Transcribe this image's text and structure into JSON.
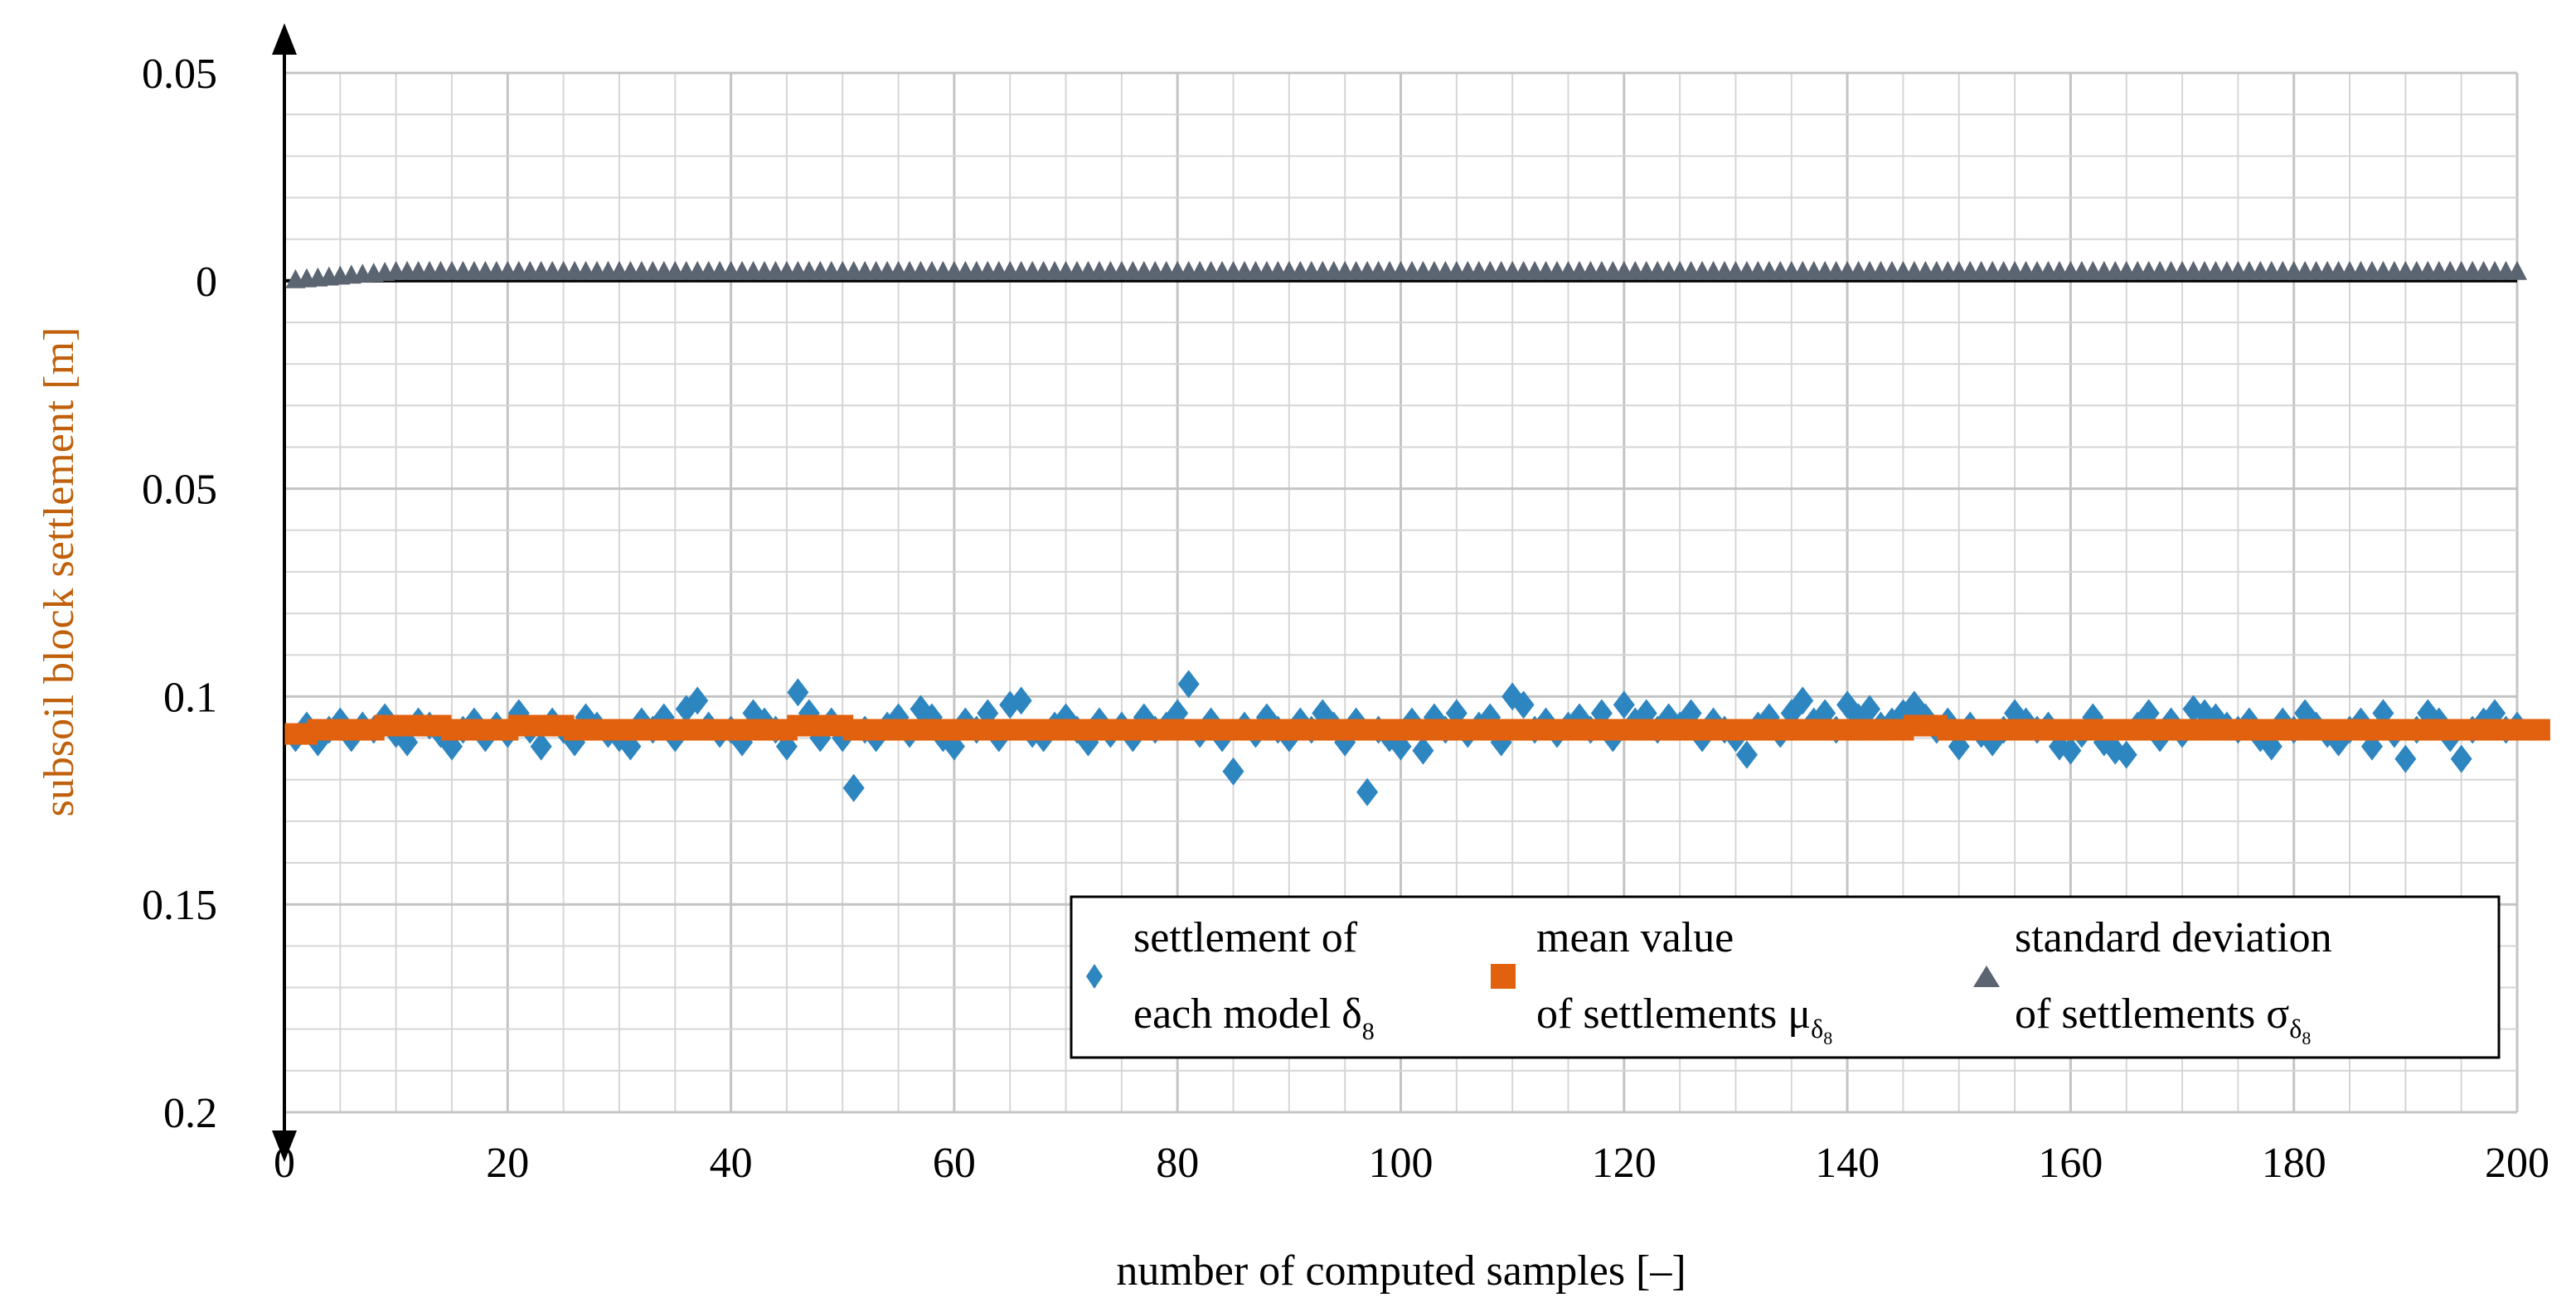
{
  "chart_data": {
    "type": "scatter",
    "xlabel": "number of computed samples [–]",
    "ylabel": "subsoil block settlement [m]",
    "xlim": [
      0,
      200
    ],
    "ylim": [
      -0.05,
      0.2
    ],
    "y_inverted": true,
    "grid": true,
    "legend_position": "bottom-right",
    "x_ticks": [
      0,
      20,
      40,
      60,
      80,
      100,
      120,
      140,
      160,
      180,
      200
    ],
    "x_tick_labels": [
      "0",
      "20",
      "40",
      "60",
      "80",
      "100",
      "120",
      "140",
      "160",
      "180",
      "200"
    ],
    "y_ticks": [
      -0.05,
      0,
      0.05,
      0.1,
      0.15,
      0.2
    ],
    "y_tick_labels": [
      "0.05",
      "0",
      "0.05",
      "0.1",
      "0.15",
      "0.2"
    ],
    "series": [
      {
        "name": "settlement of each model δ8",
        "legend_lines": [
          "settlement of",
          "each model δ",
          "8"
        ],
        "marker": "diamond",
        "color": "#2E86C1",
        "x": [
          1,
          2,
          3,
          4,
          5,
          6,
          7,
          8,
          9,
          10,
          11,
          12,
          13,
          14,
          15,
          16,
          17,
          18,
          19,
          20,
          21,
          22,
          23,
          24,
          25,
          26,
          27,
          28,
          29,
          30,
          31,
          32,
          33,
          34,
          35,
          36,
          37,
          38,
          39,
          40,
          41,
          42,
          43,
          44,
          45,
          46,
          47,
          48,
          49,
          50,
          51,
          52,
          53,
          54,
          55,
          56,
          57,
          58,
          59,
          60,
          61,
          62,
          63,
          64,
          65,
          66,
          67,
          68,
          69,
          70,
          71,
          72,
          73,
          74,
          75,
          76,
          77,
          78,
          79,
          80,
          81,
          82,
          83,
          84,
          85,
          86,
          87,
          88,
          89,
          90,
          91,
          92,
          93,
          94,
          95,
          96,
          97,
          98,
          99,
          100,
          101,
          102,
          103,
          104,
          105,
          106,
          107,
          108,
          109,
          110,
          111,
          112,
          113,
          114,
          115,
          116,
          117,
          118,
          119,
          120,
          121,
          122,
          123,
          124,
          125,
          126,
          127,
          128,
          129,
          130,
          131,
          132,
          133,
          134,
          135,
          136,
          137,
          138,
          139,
          140,
          141,
          142,
          143,
          144,
          145,
          146,
          147,
          148,
          149,
          150,
          151,
          152,
          153,
          154,
          155,
          156,
          157,
          158,
          159,
          160,
          161,
          162,
          163,
          164,
          165,
          166,
          167,
          168,
          169,
          170,
          171,
          172,
          173,
          174,
          175,
          176,
          177,
          178,
          179,
          180,
          181,
          182,
          183,
          184,
          185,
          186,
          187,
          188,
          189,
          190,
          191,
          192,
          193,
          194,
          195,
          196,
          197,
          198,
          199,
          200
        ],
        "y": [
          0.11,
          0.107,
          0.111,
          0.108,
          0.106,
          0.11,
          0.107,
          0.108,
          0.105,
          0.109,
          0.111,
          0.106,
          0.107,
          0.109,
          0.112,
          0.108,
          0.106,
          0.11,
          0.107,
          0.109,
          0.104,
          0.108,
          0.112,
          0.106,
          0.108,
          0.111,
          0.105,
          0.107,
          0.109,
          0.11,
          0.112,
          0.106,
          0.108,
          0.105,
          0.11,
          0.103,
          0.101,
          0.107,
          0.109,
          0.108,
          0.111,
          0.104,
          0.106,
          0.108,
          0.112,
          0.099,
          0.104,
          0.11,
          0.106,
          0.11,
          0.122,
          0.108,
          0.11,
          0.107,
          0.105,
          0.109,
          0.103,
          0.105,
          0.11,
          0.112,
          0.106,
          0.108,
          0.104,
          0.11,
          0.102,
          0.101,
          0.109,
          0.11,
          0.107,
          0.105,
          0.108,
          0.111,
          0.106,
          0.109,
          0.107,
          0.11,
          0.105,
          0.108,
          0.107,
          0.104,
          0.097,
          0.109,
          0.106,
          0.11,
          0.118,
          0.107,
          0.109,
          0.105,
          0.108,
          0.11,
          0.106,
          0.108,
          0.104,
          0.107,
          0.111,
          0.106,
          0.123,
          0.108,
          0.11,
          0.112,
          0.106,
          0.113,
          0.105,
          0.108,
          0.104,
          0.109,
          0.107,
          0.105,
          0.111,
          0.1,
          0.102,
          0.108,
          0.106,
          0.109,
          0.107,
          0.105,
          0.108,
          0.104,
          0.11,
          0.102,
          0.106,
          0.104,
          0.108,
          0.105,
          0.107,
          0.104,
          0.11,
          0.106,
          0.108,
          0.11,
          0.114,
          0.107,
          0.105,
          0.109,
          0.104,
          0.101,
          0.106,
          0.104,
          0.108,
          0.102,
          0.105,
          0.103,
          0.107,
          0.106,
          0.104,
          0.102,
          0.105,
          0.108,
          0.106,
          0.112,
          0.107,
          0.109,
          0.111,
          0.108,
          0.104,
          0.106,
          0.108,
          0.107,
          0.112,
          0.113,
          0.109,
          0.105,
          0.111,
          0.113,
          0.114,
          0.107,
          0.104,
          0.11,
          0.106,
          0.109,
          0.103,
          0.104,
          0.105,
          0.107,
          0.108,
          0.106,
          0.11,
          0.112,
          0.106,
          0.108,
          0.104,
          0.107,
          0.109,
          0.111,
          0.108,
          0.106,
          0.112,
          0.104,
          0.109,
          0.115,
          0.108,
          0.104,
          0.106,
          0.11,
          0.115,
          0.108,
          0.106,
          0.104,
          0.108,
          0.107
        ]
      },
      {
        "name": "mean value of settlements μδ8",
        "legend_lines": [
          "mean value",
          "of settlements μ",
          "δ",
          "8"
        ],
        "marker": "square",
        "color": "#E1610F",
        "x_range": [
          1,
          200
        ],
        "y": [
          0.109,
          0.109,
          0.108,
          0.108,
          0.108,
          0.108,
          0.108,
          0.108,
          0.107,
          0.107,
          0.107,
          0.107,
          0.107,
          0.107,
          0.108,
          0.108,
          0.108,
          0.108,
          0.108,
          0.108,
          0.107,
          0.107,
          0.107,
          0.107,
          0.107,
          0.108,
          0.108,
          0.108,
          0.108,
          0.108,
          0.108,
          0.108,
          0.108,
          0.108,
          0.108,
          0.108,
          0.108,
          0.108,
          0.108,
          0.108,
          0.108,
          0.108,
          0.108,
          0.108,
          0.108,
          0.107,
          0.107,
          0.107,
          0.107,
          0.107,
          0.108,
          0.108,
          0.108,
          0.108,
          0.108,
          0.108,
          0.108,
          0.108,
          0.108,
          0.108,
          0.108,
          0.108,
          0.108,
          0.108,
          0.108,
          0.108,
          0.108,
          0.108,
          0.108,
          0.108,
          0.108,
          0.108,
          0.108,
          0.108,
          0.108,
          0.108,
          0.108,
          0.108,
          0.108,
          0.108,
          0.108,
          0.108,
          0.108,
          0.108,
          0.108,
          0.108,
          0.108,
          0.108,
          0.108,
          0.108,
          0.108,
          0.108,
          0.108,
          0.108,
          0.108,
          0.108,
          0.108,
          0.108,
          0.108,
          0.108,
          0.108,
          0.108,
          0.108,
          0.108,
          0.108,
          0.108,
          0.108,
          0.108,
          0.108,
          0.108,
          0.108,
          0.108,
          0.108,
          0.108,
          0.108,
          0.108,
          0.108,
          0.108,
          0.108,
          0.108,
          0.108,
          0.108,
          0.108,
          0.108,
          0.108,
          0.108,
          0.108,
          0.108,
          0.108,
          0.108,
          0.108,
          0.108,
          0.108,
          0.108,
          0.108,
          0.108,
          0.108,
          0.108,
          0.108,
          0.108,
          0.108,
          0.108,
          0.108,
          0.108,
          0.108,
          0.107,
          0.107,
          0.107,
          0.108,
          0.108,
          0.108,
          0.108,
          0.108,
          0.108,
          0.108,
          0.108,
          0.108,
          0.108,
          0.108,
          0.108,
          0.108,
          0.108,
          0.108,
          0.108,
          0.108,
          0.108,
          0.108,
          0.108,
          0.108,
          0.108,
          0.108,
          0.108,
          0.108,
          0.108,
          0.108,
          0.108,
          0.108,
          0.108,
          0.108,
          0.108,
          0.108,
          0.108,
          0.108,
          0.108,
          0.108,
          0.108,
          0.108,
          0.108,
          0.108,
          0.108,
          0.108,
          0.108,
          0.108,
          0.108,
          0.108,
          0.108,
          0.108,
          0.108,
          0.108,
          0.108,
          0.108,
          0.108
        ]
      },
      {
        "name": "standard deviation of settlements σδ8",
        "legend_lines": [
          "standard deviation",
          "of settlements σ",
          "δ",
          "8"
        ],
        "marker": "triangle",
        "color": "#5B6471",
        "x_range": [
          1,
          200
        ],
        "start_value": 0.0,
        "plateau_value": -0.002,
        "note": "near zero, rising from 0 to about 0.002 in the first ~10 samples, then nearly constant"
      }
    ]
  }
}
